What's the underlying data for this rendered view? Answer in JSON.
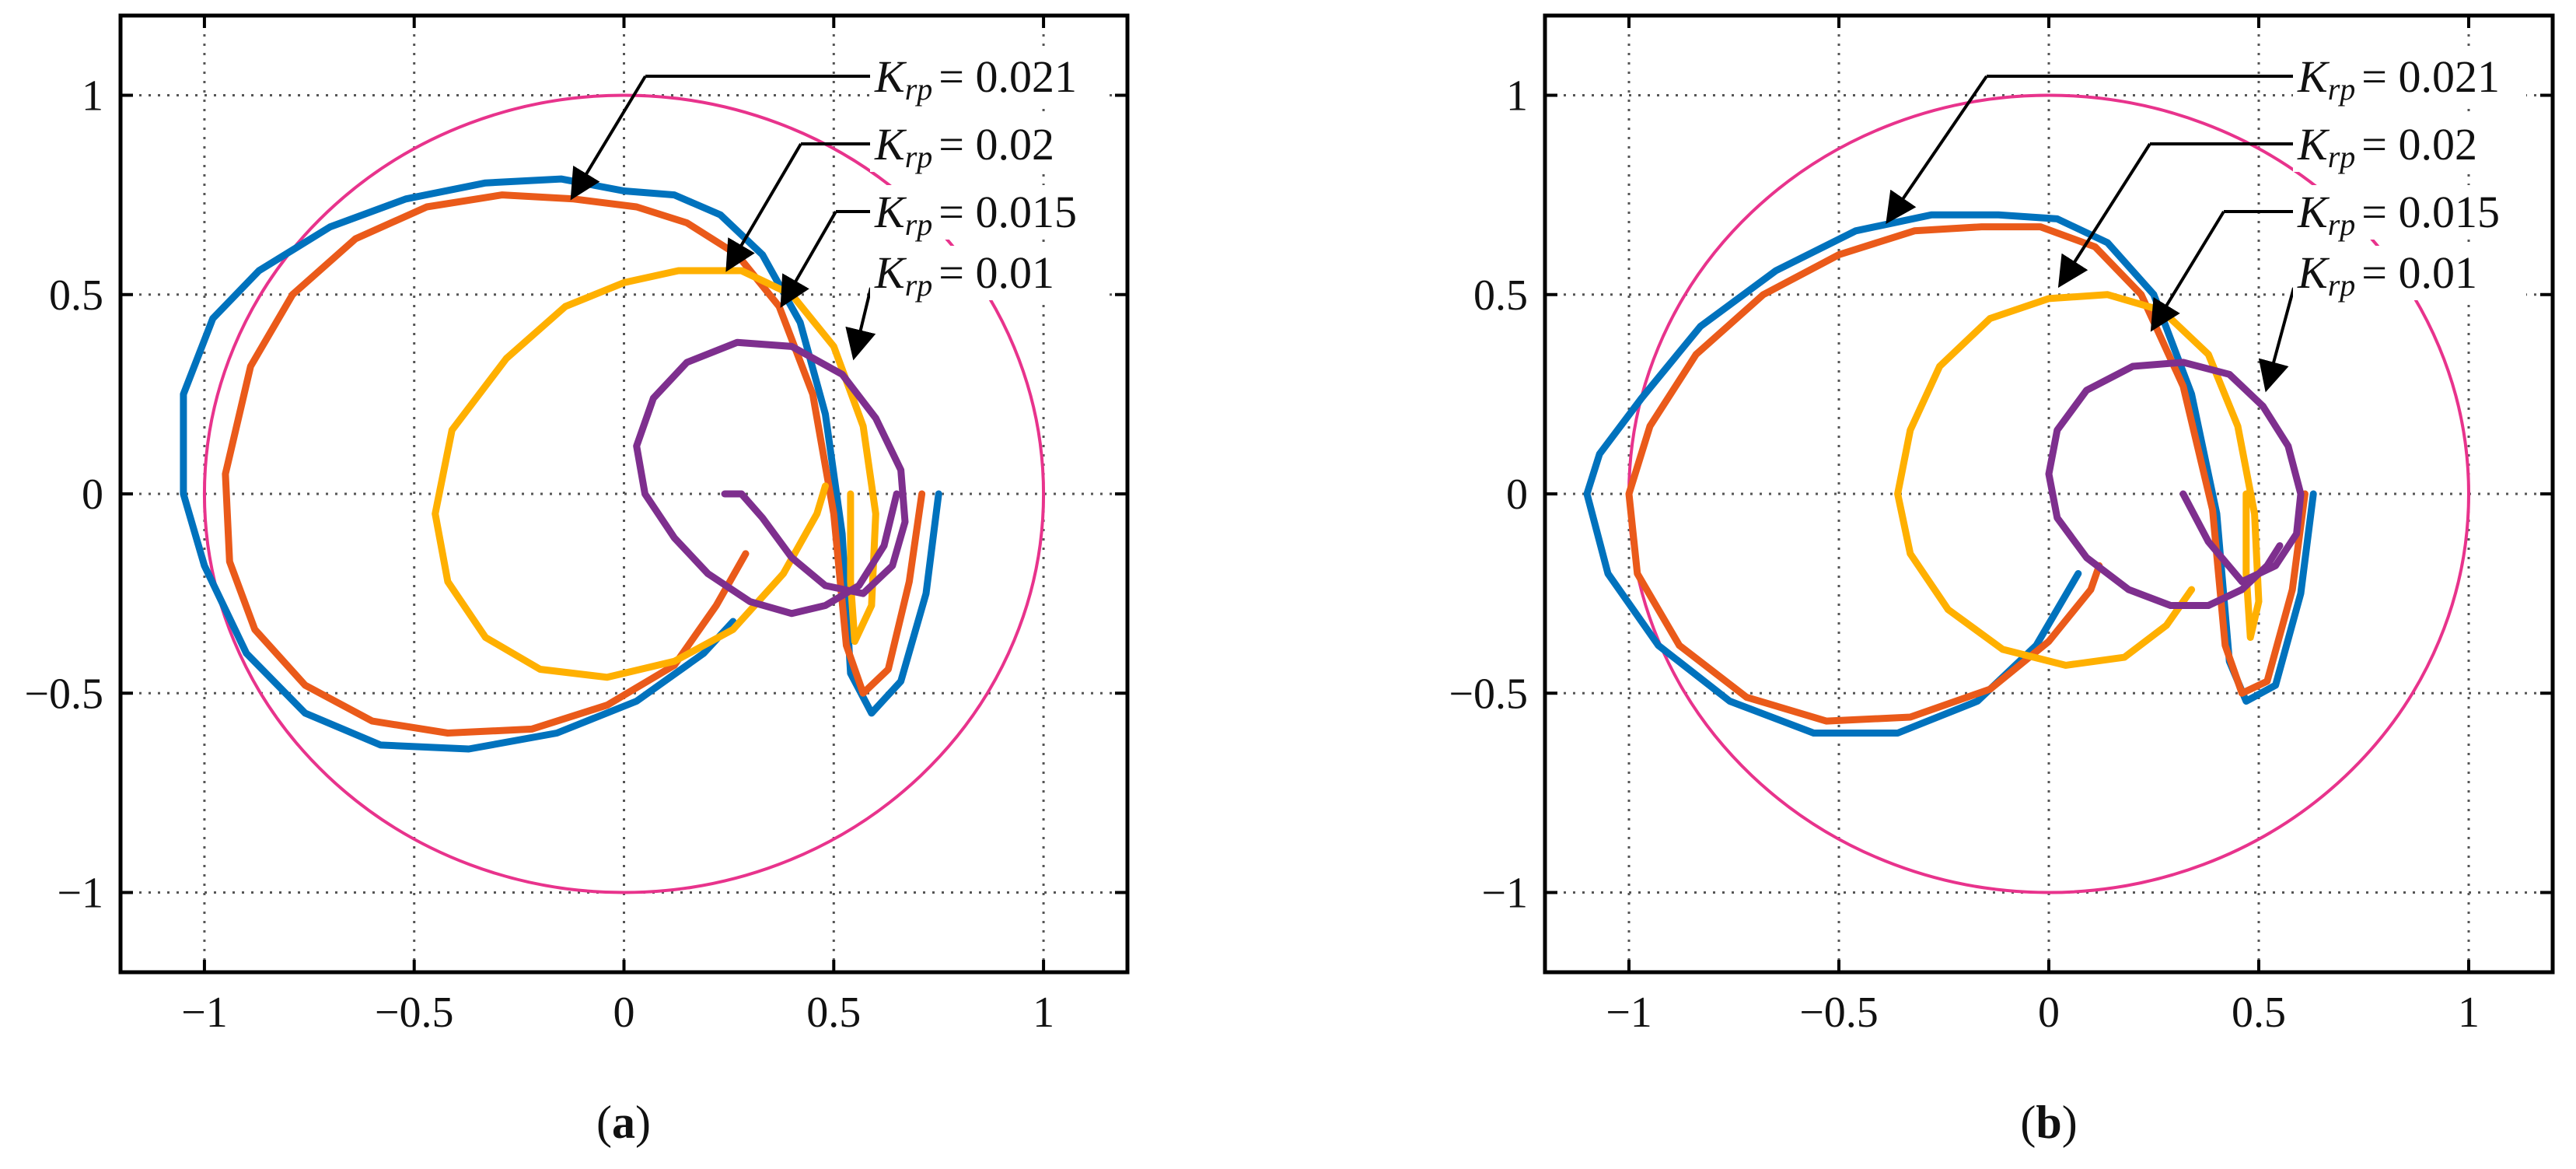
{
  "chart_data": [
    {
      "type": "line",
      "panel_label": "a",
      "xlim": [
        -1.2,
        1.2
      ],
      "ylim": [
        -1.2,
        1.2
      ],
      "xticks": [
        -1,
        -0.5,
        0,
        0.5,
        1
      ],
      "yticks": [
        -1,
        -0.5,
        0,
        0.5,
        1
      ],
      "xtick_labels": [
        "−1",
        "−0.5",
        "0",
        "0.5",
        "1"
      ],
      "ytick_labels": [
        "−1",
        "−0.5",
        "0",
        "0.5",
        "1"
      ],
      "grid": true,
      "unit_circle": {
        "center": [
          0,
          0
        ],
        "radius": 1,
        "color": "#E8338C"
      },
      "series": [
        {
          "name": "K_rp = 0.021",
          "color": "#0072BD",
          "x": [
            0.75,
            0.72,
            0.66,
            0.59,
            0.54,
            0.52,
            0.48,
            0.42,
            0.33,
            0.23,
            0.12,
            0.0,
            -0.15,
            -0.33,
            -0.52,
            -0.7,
            -0.87,
            -0.98,
            -1.05,
            -1.05,
            -1.0,
            -0.9,
            -0.76,
            -0.58,
            -0.37,
            -0.16,
            0.03,
            0.19,
            0.26
          ],
          "y": [
            0.0,
            -0.25,
            -0.47,
            -0.55,
            -0.45,
            -0.1,
            0.2,
            0.43,
            0.6,
            0.7,
            0.75,
            0.76,
            0.79,
            0.78,
            0.74,
            0.67,
            0.56,
            0.44,
            0.25,
            0.0,
            -0.18,
            -0.4,
            -0.55,
            -0.63,
            -0.64,
            -0.6,
            -0.52,
            -0.4,
            -0.32
          ]
        },
        {
          "name": "K_rp = 0.02",
          "color": "#EA5A1A",
          "x": [
            0.71,
            0.68,
            0.63,
            0.57,
            0.53,
            0.5,
            0.45,
            0.37,
            0.27,
            0.15,
            0.03,
            -0.12,
            -0.29,
            -0.47,
            -0.64,
            -0.79,
            -0.89,
            -0.95,
            -0.94,
            -0.88,
            -0.76,
            -0.6,
            -0.42,
            -0.22,
            -0.04,
            0.12,
            0.22,
            0.29
          ],
          "y": [
            0.0,
            -0.22,
            -0.44,
            -0.5,
            -0.38,
            -0.05,
            0.25,
            0.47,
            0.6,
            0.68,
            0.72,
            0.74,
            0.75,
            0.72,
            0.64,
            0.5,
            0.32,
            0.05,
            -0.17,
            -0.34,
            -0.48,
            -0.57,
            -0.6,
            -0.59,
            -0.53,
            -0.43,
            -0.28,
            -0.15
          ]
        },
        {
          "name": "K_rp = 0.015",
          "color": "#FFB000",
          "x": [
            0.54,
            0.54,
            0.55,
            0.59,
            0.6,
            0.57,
            0.5,
            0.4,
            0.28,
            0.13,
            0.0,
            -0.14,
            -0.28,
            -0.41,
            -0.45,
            -0.42,
            -0.33,
            -0.2,
            -0.04,
            0.12,
            0.26,
            0.38,
            0.46,
            0.48
          ],
          "y": [
            0.0,
            -0.22,
            -0.37,
            -0.28,
            -0.05,
            0.17,
            0.37,
            0.5,
            0.56,
            0.56,
            0.53,
            0.47,
            0.34,
            0.16,
            -0.05,
            -0.22,
            -0.36,
            -0.44,
            -0.46,
            -0.42,
            -0.34,
            -0.2,
            -0.05,
            0.02
          ]
        },
        {
          "name": "K_rp = 0.01",
          "color": "#7E2F8E",
          "x": [
            0.65,
            0.62,
            0.56,
            0.48,
            0.4,
            0.3,
            0.2,
            0.12,
            0.05,
            0.03,
            0.07,
            0.15,
            0.27,
            0.4,
            0.52,
            0.6,
            0.66,
            0.67,
            0.64,
            0.57,
            0.48,
            0.4,
            0.33,
            0.28,
            0.24
          ],
          "y": [
            0.0,
            -0.13,
            -0.23,
            -0.28,
            -0.3,
            -0.27,
            -0.2,
            -0.11,
            0.0,
            0.12,
            0.24,
            0.33,
            0.38,
            0.37,
            0.3,
            0.19,
            0.06,
            -0.07,
            -0.18,
            -0.25,
            -0.23,
            -0.16,
            -0.06,
            0.0,
            0.0
          ]
        }
      ],
      "annotations": [
        {
          "label_prefix": "K",
          "label_sub": "rp",
          "label_value": "= 0.021"
        },
        {
          "label_prefix": "K",
          "label_sub": "rp",
          "label_value": "= 0.02"
        },
        {
          "label_prefix": "K",
          "label_sub": "rp",
          "label_value": "= 0.015"
        },
        {
          "label_prefix": "K",
          "label_sub": "rp",
          "label_value": "= 0.01"
        }
      ]
    },
    {
      "type": "line",
      "panel_label": "b",
      "xlim": [
        -1.2,
        1.2
      ],
      "ylim": [
        -1.2,
        1.2
      ],
      "xticks": [
        -1,
        -0.5,
        0,
        0.5,
        1
      ],
      "yticks": [
        -1,
        -0.5,
        0,
        0.5,
        1
      ],
      "xtick_labels": [
        "−1",
        "−0.5",
        "0",
        "0.5",
        "1"
      ],
      "ytick_labels": [
        "−1",
        "−0.5",
        "0",
        "0.5",
        "1"
      ],
      "grid": true,
      "unit_circle": {
        "center": [
          0,
          0
        ],
        "radius": 1,
        "color": "#E8338C"
      },
      "series": [
        {
          "name": "K_rp = 0.021",
          "color": "#0072BD",
          "x": [
            0.63,
            0.6,
            0.54,
            0.47,
            0.43,
            0.4,
            0.34,
            0.25,
            0.14,
            0.02,
            -0.12,
            -0.28,
            -0.46,
            -0.65,
            -0.83,
            -0.97,
            -1.07,
            -1.1,
            -1.05,
            -0.93,
            -0.76,
            -0.56,
            -0.36,
            -0.17,
            -0.03,
            0.07
          ],
          "y": [
            0.0,
            -0.25,
            -0.48,
            -0.52,
            -0.42,
            -0.05,
            0.25,
            0.5,
            0.63,
            0.69,
            0.7,
            0.7,
            0.66,
            0.56,
            0.42,
            0.24,
            0.1,
            0.0,
            -0.2,
            -0.38,
            -0.52,
            -0.6,
            -0.6,
            -0.52,
            -0.38,
            -0.2
          ]
        },
        {
          "name": "K_rp = 0.02",
          "color": "#EA5A1A",
          "x": [
            0.61,
            0.58,
            0.52,
            0.46,
            0.42,
            0.39,
            0.32,
            0.22,
            0.11,
            -0.02,
            -0.16,
            -0.32,
            -0.5,
            -0.68,
            -0.84,
            -0.95,
            -1.0,
            -0.98,
            -0.88,
            -0.72,
            -0.53,
            -0.33,
            -0.14,
            0.0,
            0.1,
            0.12
          ],
          "y": [
            0.0,
            -0.24,
            -0.47,
            -0.5,
            -0.38,
            -0.04,
            0.27,
            0.5,
            0.62,
            0.67,
            0.67,
            0.66,
            0.6,
            0.5,
            0.35,
            0.17,
            0.0,
            -0.2,
            -0.38,
            -0.51,
            -0.57,
            -0.56,
            -0.49,
            -0.37,
            -0.24,
            -0.18
          ]
        },
        {
          "name": "K_rp = 0.015",
          "color": "#FFB000",
          "x": [
            0.47,
            0.47,
            0.48,
            0.5,
            0.49,
            0.45,
            0.38,
            0.27,
            0.14,
            0.0,
            -0.14,
            -0.26,
            -0.33,
            -0.36,
            -0.33,
            -0.24,
            -0.11,
            0.04,
            0.18,
            0.28,
            0.34
          ],
          "y": [
            0.0,
            -0.2,
            -0.36,
            -0.27,
            -0.05,
            0.17,
            0.35,
            0.46,
            0.5,
            0.49,
            0.44,
            0.32,
            0.16,
            0.0,
            -0.15,
            -0.29,
            -0.39,
            -0.43,
            -0.41,
            -0.33,
            -0.24
          ]
        },
        {
          "name": "K_rp = 0.01",
          "color": "#7E2F8E",
          "x": [
            0.55,
            0.52,
            0.46,
            0.38,
            0.29,
            0.19,
            0.09,
            0.02,
            0.0,
            0.02,
            0.09,
            0.2,
            0.32,
            0.43,
            0.51,
            0.57,
            0.6,
            0.59,
            0.54,
            0.46,
            0.38,
            0.32
          ],
          "y": [
            -0.13,
            -0.18,
            -0.24,
            -0.28,
            -0.28,
            -0.24,
            -0.16,
            -0.06,
            0.05,
            0.16,
            0.26,
            0.32,
            0.33,
            0.3,
            0.22,
            0.12,
            0.0,
            -0.1,
            -0.18,
            -0.22,
            -0.12,
            0.0
          ]
        }
      ],
      "annotations": [
        {
          "label_prefix": "K",
          "label_sub": "rp",
          "label_value": "= 0.021"
        },
        {
          "label_prefix": "K",
          "label_sub": "rp",
          "label_value": "= 0.02"
        },
        {
          "label_prefix": "K",
          "label_sub": "rp",
          "label_value": "= 0.015"
        },
        {
          "label_prefix": "K",
          "label_sub": "rp",
          "label_value": "= 0.01"
        }
      ]
    }
  ]
}
